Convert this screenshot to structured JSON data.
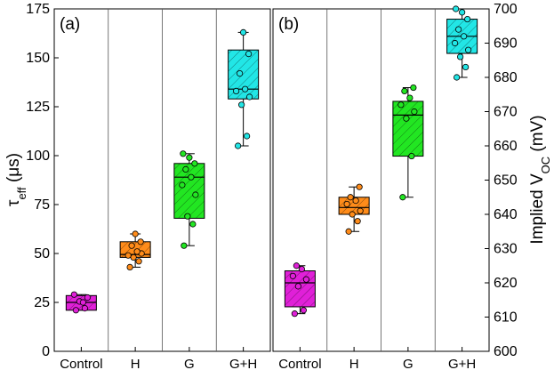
{
  "chart_data": [
    {
      "type": "box",
      "panel_label": "(a)",
      "ylabel": "τeff (μs)",
      "ylabel_main": "τ",
      "ylabel_sub": "eff",
      "ylabel_unit": " (μs)",
      "yaxis_side": "left",
      "ylim": [
        0,
        175
      ],
      "yticks": [
        "0",
        "25",
        "50",
        "75",
        "100",
        "125",
        "150",
        "175"
      ],
      "categories": [
        "Control",
        "H",
        "G",
        "G+H"
      ],
      "colors": [
        "#e020d8",
        "#ff8c1a",
        "#22e622",
        "#22e6e6"
      ],
      "grid": false,
      "boxes": [
        {
          "category": "Control",
          "min": 21,
          "q1": 21,
          "median": 25,
          "q3": 28.5,
          "max": 29,
          "points": [
            21,
            22,
            25.5,
            27.5,
            29,
            25
          ]
        },
        {
          "category": "H",
          "min": 43,
          "q1": 48,
          "median": 49.5,
          "q3": 56,
          "max": 60,
          "points": [
            43,
            46,
            48,
            50,
            49,
            51,
            54,
            56,
            60
          ]
        },
        {
          "category": "G",
          "min": 54,
          "q1": 68,
          "median": 89,
          "q3": 96,
          "max": 101,
          "points": [
            54,
            65,
            69,
            80,
            85,
            89,
            93,
            96,
            99,
            101
          ]
        },
        {
          "category": "G+H",
          "min": 105,
          "q1": 129,
          "median": 134,
          "q3": 154,
          "max": 163,
          "points": [
            105,
            110,
            126,
            130,
            133,
            134,
            142,
            152,
            163
          ]
        }
      ]
    },
    {
      "type": "box",
      "panel_label": "(b)",
      "ylabel": "Implied VOC (mV)",
      "ylabel_main": "Implied V",
      "ylabel_sub": "OC",
      "ylabel_unit": " (mV)",
      "yaxis_side": "right",
      "ylim": [
        600,
        700
      ],
      "yticks": [
        "600",
        "610",
        "620",
        "630",
        "640",
        "650",
        "660",
        "670",
        "680",
        "690",
        "700"
      ],
      "categories": [
        "Control",
        "H",
        "G",
        "G+H"
      ],
      "colors": [
        "#e020d8",
        "#ff8c1a",
        "#22e622",
        "#22e6e6"
      ],
      "grid": false,
      "boxes": [
        {
          "category": "Control",
          "min": 611,
          "q1": 613,
          "median": 620,
          "q3": 623.5,
          "max": 625,
          "points": [
            611,
            612,
            619,
            621,
            622,
            624,
            625
          ]
        },
        {
          "category": "H",
          "min": 635,
          "q1": 640,
          "median": 642,
          "q3": 645,
          "max": 648,
          "points": [
            635,
            638,
            640,
            641,
            643,
            644,
            645,
            648
          ]
        },
        {
          "category": "G",
          "min": 645,
          "q1": 657,
          "median": 669,
          "q3": 673,
          "max": 677,
          "points": [
            645,
            657,
            668,
            670,
            672,
            674,
            676,
            677
          ]
        },
        {
          "category": "G+H",
          "min": 680,
          "q1": 687,
          "median": 692,
          "q3": 697,
          "max": 700,
          "points": [
            680,
            683,
            686,
            688,
            690,
            692,
            694,
            697,
            699,
            700
          ]
        }
      ]
    }
  ]
}
